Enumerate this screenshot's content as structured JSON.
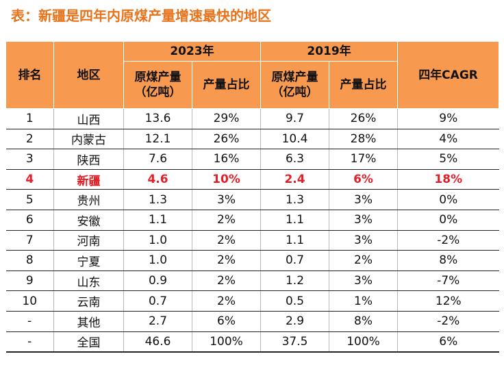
{
  "title": "表：新疆是四年内原煤产量增速最快的地区",
  "header": {
    "rank": "排名",
    "region": "地区",
    "year_2023": "2023年",
    "year_2019": "2019年",
    "cagr": "四年CAGR",
    "output": "原煤产量",
    "output_unit": "（亿吨）",
    "share": "产量占比"
  },
  "rows": [
    {
      "rank": "1",
      "region": "山西",
      "o2023": "13.6",
      "s2023": "29%",
      "o2019": "9.7",
      "s2019": "26%",
      "cagr": "9%"
    },
    {
      "rank": "2",
      "region": "内蒙古",
      "o2023": "12.1",
      "s2023": "26%",
      "o2019": "10.4",
      "s2019": "28%",
      "cagr": "4%"
    },
    {
      "rank": "3",
      "region": "陕西",
      "o2023": "7.6",
      "s2023": "16%",
      "o2019": "6.3",
      "s2019": "17%",
      "cagr": "5%"
    },
    {
      "rank": "4",
      "region": "新疆",
      "o2023": "4.6",
      "s2023": "10%",
      "o2019": "2.4",
      "s2019": "6%",
      "cagr": "18%"
    },
    {
      "rank": "5",
      "region": "贵州",
      "o2023": "1.3",
      "s2023": "3%",
      "o2019": "1.3",
      "s2019": "3%",
      "cagr": "0%"
    },
    {
      "rank": "6",
      "region": "安徽",
      "o2023": "1.1",
      "s2023": "2%",
      "o2019": "1.1",
      "s2019": "3%",
      "cagr": "0%"
    },
    {
      "rank": "7",
      "region": "河南",
      "o2023": "1.0",
      "s2023": "2%",
      "o2019": "1.1",
      "s2019": "3%",
      "cagr": "-2%"
    },
    {
      "rank": "8",
      "region": "宁夏",
      "o2023": "1.0",
      "s2023": "2%",
      "o2019": "0.7",
      "s2019": "2%",
      "cagr": "8%"
    },
    {
      "rank": "9",
      "region": "山东",
      "o2023": "0.9",
      "s2023": "2%",
      "o2019": "1.2",
      "s2019": "3%",
      "cagr": "-7%"
    },
    {
      "rank": "10",
      "region": "云南",
      "o2023": "0.7",
      "s2023": "2%",
      "o2019": "0.5",
      "s2019": "1%",
      "cagr": "12%"
    },
    {
      "rank": "-",
      "region": "其他",
      "o2023": "2.7",
      "s2023": "6%",
      "o2019": "2.9",
      "s2019": "8%",
      "cagr": "-2%"
    },
    {
      "rank": "-",
      "region": "全国",
      "o2023": "46.6",
      "s2023": "100%",
      "o2019": "37.5",
      "s2019": "100%",
      "cagr": "6%"
    }
  ],
  "colors": {
    "title": "#e8731a",
    "header_bg": "#f79a4f",
    "highlight": "#e41e26"
  }
}
